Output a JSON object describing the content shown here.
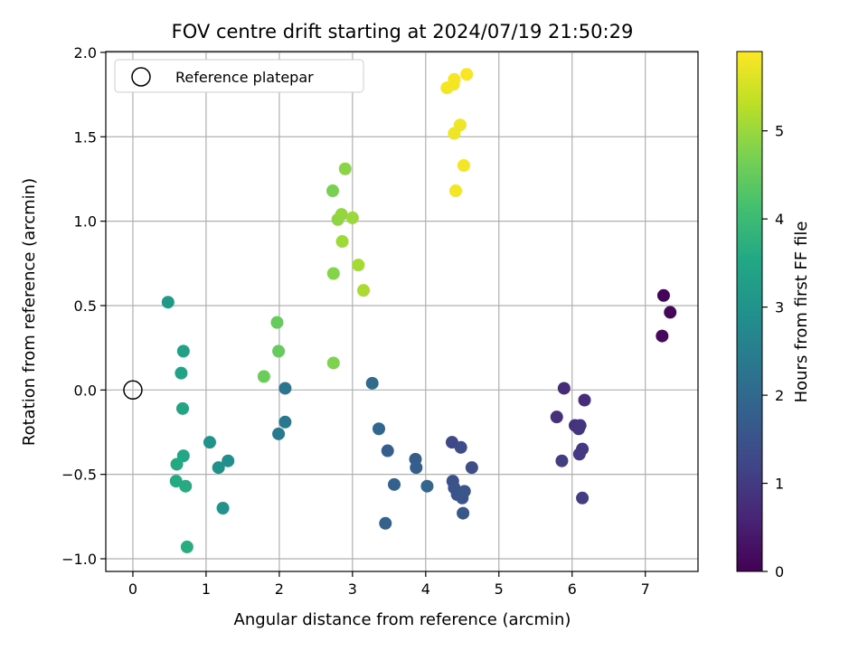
{
  "chart_data": {
    "type": "scatter",
    "title": "FOV centre drift starting at 2024/07/19 21:50:29",
    "xlabel": "Angular distance from reference (arcmin)",
    "ylabel": "Rotation from reference (arcmin)",
    "xlim": [
      -0.37,
      7.72
    ],
    "ylim": [
      -1.075,
      2.005
    ],
    "xticks": [
      0,
      1,
      2,
      3,
      4,
      5,
      6,
      7
    ],
    "xtick_labels": [
      "0",
      "1",
      "2",
      "3",
      "4",
      "5",
      "6",
      "7"
    ],
    "yticks": [
      -1.0,
      -0.5,
      0.0,
      0.5,
      1.0,
      1.5,
      2.0
    ],
    "ytick_labels": [
      "−1.0",
      "−0.5",
      "0.0",
      "0.5",
      "1.0",
      "1.5",
      "2.0"
    ],
    "grid": true,
    "legend": {
      "position": "upper-left",
      "label": "Reference platepar",
      "marker": "open-circle"
    },
    "reference_point": {
      "x": 0.0,
      "y": 0.0
    },
    "colorbar": {
      "label": "Hours from first FF file",
      "range": [
        0,
        5.9
      ],
      "ticks": [
        0,
        1,
        2,
        3,
        4,
        5
      ],
      "tick_labels": [
        "0",
        "1",
        "2",
        "3",
        "4",
        "5"
      ],
      "colormap": "viridis"
    },
    "points": [
      {
        "x": 7.25,
        "y": 0.56,
        "c": 0.05
      },
      {
        "x": 7.34,
        "y": 0.46,
        "c": 0.1
      },
      {
        "x": 7.23,
        "y": 0.32,
        "c": 0.15
      },
      {
        "x": 5.89,
        "y": 0.01,
        "c": 0.7
      },
      {
        "x": 6.17,
        "y": -0.06,
        "c": 0.75
      },
      {
        "x": 5.79,
        "y": -0.16,
        "c": 0.8
      },
      {
        "x": 6.04,
        "y": -0.21,
        "c": 0.85
      },
      {
        "x": 6.09,
        "y": -0.23,
        "c": 0.88
      },
      {
        "x": 6.11,
        "y": -0.21,
        "c": 0.9
      },
      {
        "x": 6.14,
        "y": -0.35,
        "c": 0.95
      },
      {
        "x": 6.1,
        "y": -0.38,
        "c": 1.0
      },
      {
        "x": 5.86,
        "y": -0.42,
        "c": 1.05
      },
      {
        "x": 6.14,
        "y": -0.64,
        "c": 1.05
      },
      {
        "x": 4.36,
        "y": -0.31,
        "c": 1.3
      },
      {
        "x": 4.48,
        "y": -0.34,
        "c": 1.35
      },
      {
        "x": 4.63,
        "y": -0.46,
        "c": 1.4
      },
      {
        "x": 4.37,
        "y": -0.54,
        "c": 1.45
      },
      {
        "x": 4.39,
        "y": -0.58,
        "c": 1.5
      },
      {
        "x": 4.43,
        "y": -0.62,
        "c": 1.5
      },
      {
        "x": 4.5,
        "y": -0.64,
        "c": 1.55
      },
      {
        "x": 4.53,
        "y": -0.6,
        "c": 1.55
      },
      {
        "x": 4.51,
        "y": -0.73,
        "c": 1.6
      },
      {
        "x": 3.86,
        "y": -0.41,
        "c": 1.7
      },
      {
        "x": 3.87,
        "y": -0.46,
        "c": 1.75
      },
      {
        "x": 3.48,
        "y": -0.36,
        "c": 1.75
      },
      {
        "x": 3.57,
        "y": -0.56,
        "c": 1.8
      },
      {
        "x": 3.45,
        "y": -0.79,
        "c": 1.85
      },
      {
        "x": 4.02,
        "y": -0.57,
        "c": 1.9
      },
      {
        "x": 3.36,
        "y": -0.23,
        "c": 1.95
      },
      {
        "x": 3.27,
        "y": 0.04,
        "c": 2.05
      },
      {
        "x": 2.08,
        "y": 0.01,
        "c": 2.3
      },
      {
        "x": 2.08,
        "y": -0.19,
        "c": 2.35
      },
      {
        "x": 1.99,
        "y": -0.26,
        "c": 2.4
      },
      {
        "x": 1.3,
        "y": -0.42,
        "c": 2.9
      },
      {
        "x": 1.17,
        "y": -0.46,
        "c": 2.95
      },
      {
        "x": 1.05,
        "y": -0.31,
        "c": 3.0
      },
      {
        "x": 1.23,
        "y": -0.7,
        "c": 3.0
      },
      {
        "x": 0.48,
        "y": 0.52,
        "c": 3.15
      },
      {
        "x": 0.69,
        "y": 0.23,
        "c": 3.35
      },
      {
        "x": 0.66,
        "y": 0.1,
        "c": 3.4
      },
      {
        "x": 0.68,
        "y": -0.11,
        "c": 3.45
      },
      {
        "x": 0.69,
        "y": -0.39,
        "c": 3.5
      },
      {
        "x": 0.6,
        "y": -0.44,
        "c": 3.55
      },
      {
        "x": 0.59,
        "y": -0.54,
        "c": 3.6
      },
      {
        "x": 0.72,
        "y": -0.57,
        "c": 3.6
      },
      {
        "x": 0.74,
        "y": -0.93,
        "c": 3.65
      },
      {
        "x": 1.97,
        "y": 0.4,
        "c": 4.5
      },
      {
        "x": 1.99,
        "y": 0.23,
        "c": 4.5
      },
      {
        "x": 1.79,
        "y": 0.08,
        "c": 4.55
      },
      {
        "x": 2.74,
        "y": 0.16,
        "c": 4.75
      },
      {
        "x": 2.73,
        "y": 1.18,
        "c": 4.7
      },
      {
        "x": 2.74,
        "y": 0.69,
        "c": 4.8
      },
      {
        "x": 2.9,
        "y": 1.31,
        "c": 4.85
      },
      {
        "x": 2.8,
        "y": 1.01,
        "c": 4.9
      },
      {
        "x": 2.85,
        "y": 1.04,
        "c": 4.95
      },
      {
        "x": 3.0,
        "y": 1.02,
        "c": 5.0
      },
      {
        "x": 2.86,
        "y": 0.88,
        "c": 5.05
      },
      {
        "x": 3.08,
        "y": 0.74,
        "c": 5.1
      },
      {
        "x": 3.15,
        "y": 0.59,
        "c": 5.15
      },
      {
        "x": 4.56,
        "y": 1.87,
        "c": 5.85
      },
      {
        "x": 4.39,
        "y": 1.84,
        "c": 5.85
      },
      {
        "x": 4.29,
        "y": 1.79,
        "c": 5.8
      },
      {
        "x": 4.38,
        "y": 1.81,
        "c": 5.8
      },
      {
        "x": 4.47,
        "y": 1.57,
        "c": 5.75
      },
      {
        "x": 4.39,
        "y": 1.52,
        "c": 5.75
      },
      {
        "x": 4.52,
        "y": 1.33,
        "c": 5.8
      },
      {
        "x": 4.41,
        "y": 1.18,
        "c": 5.8
      }
    ]
  }
}
